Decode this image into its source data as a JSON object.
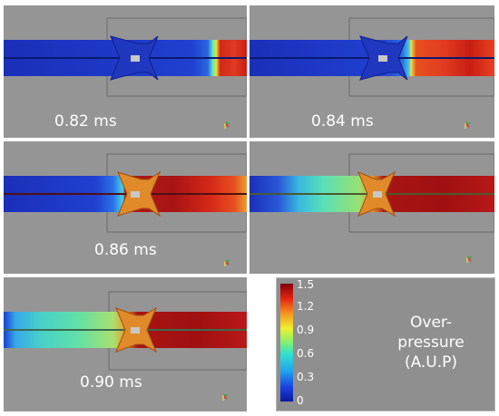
{
  "panels": [
    {
      "time": "0.82 ms"
    },
    {
      "time": "0.84 ms"
    },
    {
      "time": "0.86 ms"
    },
    {
      "time": "0.90 ms"
    }
  ],
  "colorbar": {
    "ticks": [
      "1.5",
      "1.2",
      "0.9",
      "0.6",
      "0.3",
      "0"
    ],
    "title_line1": "Over-",
    "title_line2": "pressure",
    "title_line3": "(A.U.P)"
  },
  "colors": {
    "background": "#959595",
    "low": "#1e3cc8",
    "high": "#b41414"
  }
}
